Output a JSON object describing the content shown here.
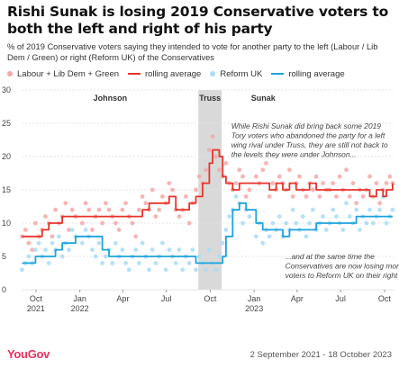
{
  "title": "Rishi Sunak is losing 2019 Conservative voters to both the left and right of his party",
  "subtitle": "% of 2019 Conservative voters saying they intended to vote for another party to the left (Labour / Lib Dem / Green) or right (Reform UK) of the Conservatives",
  "legend": [
    {
      "label": "Labour + Lib Dem + Green",
      "kind": "dot",
      "color": "#f4a8a8"
    },
    {
      "label": "rolling average",
      "kind": "line",
      "color": "#e8332a"
    },
    {
      "label": "Reform UK",
      "kind": "dot",
      "color": "#a9dcf5"
    },
    {
      "label": "rolling average",
      "kind": "line",
      "color": "#1ca3dc"
    }
  ],
  "footer": {
    "logo": "YouGov",
    "date_range": "2 September 2021 - 18 October 2023"
  },
  "colors": {
    "left_points": "#f4a8a8",
    "left_line": "#e8332a",
    "right_points": "#a9dcf5",
    "right_line": "#1ca3dc",
    "truss_band": "#d9d9d9",
    "grid": "#e4e4e4"
  },
  "chart_data": {
    "type": "scatter",
    "ylim": [
      0,
      30
    ],
    "y_ticks": [
      0,
      5,
      10,
      15,
      20,
      25,
      30
    ],
    "x_domain": [
      "2021-09-01",
      "2023-10-20"
    ],
    "x_ticks": [
      {
        "date": "2021-10-01",
        "line1": "Oct",
        "line2": "2021"
      },
      {
        "date": "2022-01-01",
        "line1": "Jan",
        "line2": "2022"
      },
      {
        "date": "2022-04-01",
        "line1": "Apr",
        "line2": ""
      },
      {
        "date": "2022-07-01",
        "line1": "Jul",
        "line2": ""
      },
      {
        "date": "2022-10-01",
        "line1": "Oct",
        "line2": ""
      },
      {
        "date": "2023-01-01",
        "line1": "Jan",
        "line2": "2023"
      },
      {
        "date": "2023-04-01",
        "line1": "Apr",
        "line2": ""
      },
      {
        "date": "2023-07-01",
        "line1": "Jul",
        "line2": ""
      },
      {
        "date": "2023-10-01",
        "line1": "Oct",
        "line2": ""
      }
    ],
    "periods": [
      {
        "label": "Johnson",
        "start": "2021-09-02",
        "end": "2022-09-06"
      },
      {
        "label": "Truss",
        "start": "2022-09-06",
        "end": "2022-10-25",
        "shaded": true
      },
      {
        "label": "Sunak",
        "start": "2022-10-25",
        "end": "2023-10-18"
      }
    ],
    "annotations": [
      {
        "id": "top",
        "date": "2022-11-14",
        "y": 24.2,
        "lines": [
          "While Rishi Sunak did bring back some 2019",
          "Tory voters who abandoned the party for a left",
          "wing rival under Truss, they are still not back to",
          "the levels they were under Johnson..."
        ]
      },
      {
        "id": "bottom",
        "date": "2023-03-07",
        "y": 4.6,
        "lines": [
          "...and at the same time the",
          "Conservatives are now losing more",
          "voters to Reform UK on their right"
        ]
      }
    ],
    "series": [
      {
        "name": "Labour + Lib Dem + Green",
        "role": "points",
        "x": [
          "2021-09-02",
          "2021-09-09",
          "2021-09-16",
          "2021-09-23",
          "2021-09-30",
          "2021-10-07",
          "2021-10-14",
          "2021-10-21",
          "2021-10-28",
          "2021-11-04",
          "2021-11-11",
          "2021-11-18",
          "2021-11-25",
          "2021-12-02",
          "2021-12-09",
          "2021-12-16",
          "2021-12-23",
          "2022-01-06",
          "2022-01-13",
          "2022-01-20",
          "2022-01-27",
          "2022-02-03",
          "2022-02-10",
          "2022-02-17",
          "2022-02-24",
          "2022-03-03",
          "2022-03-10",
          "2022-03-17",
          "2022-03-24",
          "2022-03-31",
          "2022-04-07",
          "2022-04-14",
          "2022-04-21",
          "2022-04-28",
          "2022-05-05",
          "2022-05-12",
          "2022-05-19",
          "2022-05-26",
          "2022-06-02",
          "2022-06-09",
          "2022-06-16",
          "2022-06-23",
          "2022-06-30",
          "2022-07-07",
          "2022-07-14",
          "2022-07-21",
          "2022-07-28",
          "2022-08-04",
          "2022-08-11",
          "2022-08-18",
          "2022-08-25",
          "2022-09-01",
          "2022-09-08",
          "2022-09-15",
          "2022-09-22",
          "2022-09-29",
          "2022-10-06",
          "2022-10-13",
          "2022-10-20",
          "2022-10-27",
          "2022-11-03",
          "2022-11-10",
          "2022-11-17",
          "2022-11-24",
          "2022-12-01",
          "2022-12-08",
          "2022-12-15",
          "2022-12-22",
          "2023-01-05",
          "2023-01-12",
          "2023-01-19",
          "2023-01-26",
          "2023-02-02",
          "2023-02-09",
          "2023-02-16",
          "2023-02-23",
          "2023-03-02",
          "2023-03-09",
          "2023-03-16",
          "2023-03-23",
          "2023-03-30",
          "2023-04-06",
          "2023-04-13",
          "2023-04-20",
          "2023-04-27",
          "2023-05-04",
          "2023-05-11",
          "2023-05-18",
          "2023-05-25",
          "2023-06-01",
          "2023-06-08",
          "2023-06-15",
          "2023-06-22",
          "2023-06-29",
          "2023-07-06",
          "2023-07-13",
          "2023-07-20",
          "2023-07-27",
          "2023-08-03",
          "2023-08-10",
          "2023-08-17",
          "2023-08-24",
          "2023-08-31",
          "2023-09-07",
          "2023-09-14",
          "2023-09-21",
          "2023-09-28",
          "2023-10-05",
          "2023-10-12",
          "2023-10-18"
        ],
        "y": [
          8,
          9,
          7,
          6,
          10,
          8,
          9,
          11,
          10,
          8,
          12,
          10,
          11,
          13,
          9,
          12,
          11,
          10,
          13,
          12,
          9,
          11,
          12,
          10,
          13,
          12,
          11,
          10,
          9,
          12,
          13,
          11,
          10,
          8,
          12,
          14,
          13,
          12,
          15,
          11,
          12,
          14,
          13,
          16,
          15,
          12,
          11,
          12,
          14,
          10,
          13,
          15,
          17,
          16,
          18,
          21,
          23,
          20,
          18,
          17,
          19,
          16,
          15,
          16,
          18,
          17,
          14,
          15,
          17,
          16,
          18,
          19,
          14,
          16,
          15,
          17,
          16,
          15,
          18,
          14,
          16,
          17,
          15,
          14,
          16,
          15,
          17,
          14,
          16,
          15,
          15,
          16,
          14,
          17,
          15,
          18,
          14,
          16,
          13,
          15,
          14,
          15,
          17,
          14,
          16,
          13,
          15,
          16,
          17,
          16
        ]
      },
      {
        "name": "rolling average",
        "role": "line",
        "x": [
          "2021-09-02",
          "2021-09-16",
          "2021-09-30",
          "2021-10-14",
          "2021-10-28",
          "2021-11-11",
          "2021-11-25",
          "2021-12-09",
          "2021-12-23",
          "2022-01-06",
          "2022-01-20",
          "2022-02-03",
          "2022-02-17",
          "2022-03-03",
          "2022-03-17",
          "2022-03-31",
          "2022-04-14",
          "2022-04-28",
          "2022-05-12",
          "2022-05-26",
          "2022-06-09",
          "2022-06-23",
          "2022-07-07",
          "2022-07-21",
          "2022-08-04",
          "2022-08-18",
          "2022-09-01",
          "2022-09-15",
          "2022-09-29",
          "2022-10-06",
          "2022-10-13",
          "2022-10-20",
          "2022-10-27",
          "2022-11-03",
          "2022-11-17",
          "2022-12-01",
          "2022-12-15",
          "2023-01-05",
          "2023-01-19",
          "2023-02-02",
          "2023-02-16",
          "2023-03-02",
          "2023-03-16",
          "2023-03-30",
          "2023-04-13",
          "2023-04-27",
          "2023-05-11",
          "2023-05-25",
          "2023-06-08",
          "2023-06-22",
          "2023-07-06",
          "2023-07-20",
          "2023-08-03",
          "2023-08-17",
          "2023-08-31",
          "2023-09-14",
          "2023-09-28",
          "2023-10-05",
          "2023-10-12",
          "2023-10-18"
        ],
        "y": [
          8,
          8,
          8,
          9,
          10,
          10,
          11,
          11,
          11,
          11,
          11,
          11,
          11,
          11,
          11,
          11,
          11,
          11,
          12,
          13,
          13,
          13,
          14,
          12,
          12,
          13,
          14,
          16,
          19,
          21,
          21,
          20,
          17,
          16,
          15,
          16,
          16,
          16,
          16,
          15,
          16,
          15,
          16,
          15,
          15,
          16,
          15,
          15,
          15,
          15,
          15,
          15,
          15,
          15,
          14,
          15,
          14,
          15,
          15,
          16
        ]
      },
      {
        "name": "Reform UK",
        "role": "points",
        "x": [
          "2021-09-02",
          "2021-09-09",
          "2021-09-16",
          "2021-09-23",
          "2021-09-30",
          "2021-10-07",
          "2021-10-14",
          "2021-10-21",
          "2021-10-28",
          "2021-11-04",
          "2021-11-11",
          "2021-11-18",
          "2021-11-25",
          "2021-12-02",
          "2021-12-09",
          "2021-12-16",
          "2021-12-23",
          "2022-01-06",
          "2022-01-13",
          "2022-01-20",
          "2022-01-27",
          "2022-02-03",
          "2022-02-10",
          "2022-02-17",
          "2022-02-24",
          "2022-03-03",
          "2022-03-10",
          "2022-03-17",
          "2022-03-24",
          "2022-03-31",
          "2022-04-07",
          "2022-04-14",
          "2022-04-21",
          "2022-04-28",
          "2022-05-05",
          "2022-05-12",
          "2022-05-19",
          "2022-05-26",
          "2022-06-02",
          "2022-06-09",
          "2022-06-16",
          "2022-06-23",
          "2022-06-30",
          "2022-07-07",
          "2022-07-14",
          "2022-07-21",
          "2022-07-28",
          "2022-08-04",
          "2022-08-11",
          "2022-08-18",
          "2022-08-25",
          "2022-09-01",
          "2022-09-08",
          "2022-09-15",
          "2022-09-22",
          "2022-09-29",
          "2022-10-06",
          "2022-10-13",
          "2022-10-20",
          "2022-10-27",
          "2022-11-03",
          "2022-11-10",
          "2022-11-17",
          "2022-11-24",
          "2022-12-01",
          "2022-12-08",
          "2022-12-15",
          "2022-12-22",
          "2023-01-05",
          "2023-01-12",
          "2023-01-19",
          "2023-01-26",
          "2023-02-02",
          "2023-02-09",
          "2023-02-16",
          "2023-02-23",
          "2023-03-02",
          "2023-03-09",
          "2023-03-16",
          "2023-03-23",
          "2023-03-30",
          "2023-04-06",
          "2023-04-13",
          "2023-04-20",
          "2023-04-27",
          "2023-05-04",
          "2023-05-11",
          "2023-05-18",
          "2023-05-25",
          "2023-06-01",
          "2023-06-08",
          "2023-06-15",
          "2023-06-22",
          "2023-06-29",
          "2023-07-06",
          "2023-07-13",
          "2023-07-20",
          "2023-07-27",
          "2023-08-03",
          "2023-08-10",
          "2023-08-17",
          "2023-08-24",
          "2023-08-31",
          "2023-09-07",
          "2023-09-14",
          "2023-09-21",
          "2023-09-28",
          "2023-10-05",
          "2023-10-12",
          "2023-10-18"
        ],
        "y": [
          3,
          4,
          5,
          4,
          6,
          7,
          5,
          6,
          4,
          7,
          6,
          8,
          5,
          7,
          6,
          9,
          8,
          7,
          9,
          8,
          6,
          5,
          7,
          4,
          5,
          6,
          4,
          7,
          5,
          6,
          4,
          3,
          5,
          6,
          4,
          7,
          5,
          3,
          6,
          4,
          5,
          7,
          3,
          6,
          5,
          4,
          6,
          3,
          5,
          4,
          6,
          3,
          5,
          4,
          3,
          6,
          4,
          3,
          5,
          7,
          9,
          11,
          12,
          14,
          13,
          10,
          12,
          11,
          8,
          10,
          7,
          9,
          8,
          10,
          9,
          11,
          8,
          10,
          9,
          12,
          10,
          9,
          11,
          8,
          10,
          12,
          9,
          10,
          11,
          9,
          10,
          12,
          11,
          10,
          9,
          13,
          11,
          10,
          12,
          9,
          11,
          10,
          12,
          10,
          11,
          12,
          14,
          10,
          11,
          12
        ]
      },
      {
        "name": "rolling average",
        "role": "line",
        "x": [
          "2021-09-02",
          "2021-09-16",
          "2021-09-30",
          "2021-10-14",
          "2021-10-28",
          "2021-11-11",
          "2021-11-25",
          "2021-12-09",
          "2021-12-23",
          "2022-01-06",
          "2022-01-20",
          "2022-02-03",
          "2022-02-17",
          "2022-03-03",
          "2022-03-17",
          "2022-03-31",
          "2022-04-14",
          "2022-04-28",
          "2022-05-12",
          "2022-05-26",
          "2022-06-09",
          "2022-06-23",
          "2022-07-07",
          "2022-07-21",
          "2022-08-04",
          "2022-08-18",
          "2022-09-01",
          "2022-09-15",
          "2022-09-29",
          "2022-10-06",
          "2022-10-13",
          "2022-10-20",
          "2022-10-27",
          "2022-11-03",
          "2022-11-17",
          "2022-12-01",
          "2022-12-15",
          "2023-01-05",
          "2023-01-19",
          "2023-02-02",
          "2023-02-16",
          "2023-03-02",
          "2023-03-16",
          "2023-03-30",
          "2023-04-13",
          "2023-04-27",
          "2023-05-11",
          "2023-05-25",
          "2023-06-08",
          "2023-06-22",
          "2023-07-06",
          "2023-07-20",
          "2023-08-03",
          "2023-08-17",
          "2023-08-31",
          "2023-09-14",
          "2023-09-28",
          "2023-10-05",
          "2023-10-12",
          "2023-10-18"
        ],
        "y": [
          4,
          4,
          5,
          5,
          5,
          6,
          7,
          7,
          8,
          8,
          8,
          8,
          6,
          5,
          5,
          5,
          5,
          5,
          5,
          5,
          5,
          5,
          5,
          5,
          5,
          5,
          4,
          4,
          4,
          4,
          4,
          4,
          5,
          8,
          12,
          13,
          12,
          10,
          9,
          9,
          9,
          8,
          9,
          9,
          9,
          9,
          10,
          10,
          10,
          10,
          10,
          10,
          11,
          11,
          11,
          11,
          11,
          11,
          11,
          11
        ]
      }
    ]
  }
}
